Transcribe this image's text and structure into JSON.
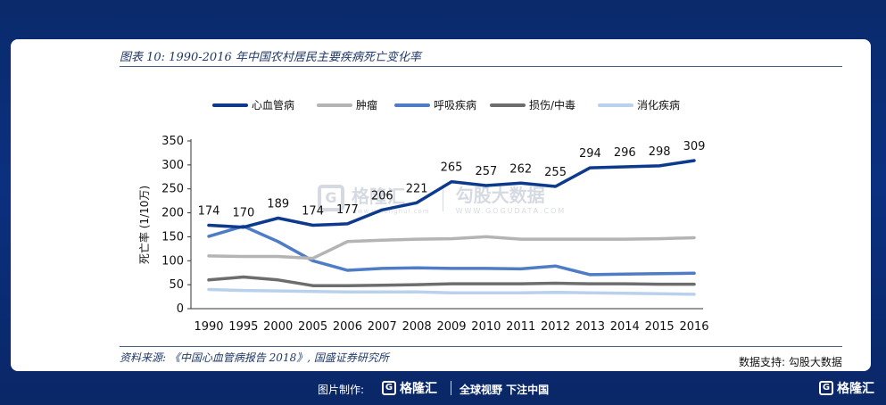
{
  "figure": {
    "title": "图表 10:  1990-2016 年中国农村居民主要疾病死亡变化率",
    "source": "资料来源: 《中国心血管病报告 2018》, 国盛证券研究所",
    "support": "数据支持: 勾股大数据"
  },
  "watermark": {
    "brand": "格隆汇",
    "brand_url": "www.gelonghui.com",
    "partner": "勾股大数据",
    "partner_url": "WWW.GOGUDATA.COM"
  },
  "footer": {
    "made_by": "图片制作:",
    "brand": "格隆汇",
    "slogan": "全球视野 下注中国",
    "corner_brand": "格隆汇"
  },
  "colors": {
    "cardiovascular": "#0d3a8c",
    "tumor": "#b4b4b4",
    "respiratory": "#4f7cc6",
    "injury": "#6d6d6d",
    "digestive": "#b9d1ec"
  },
  "chart_data": {
    "type": "line",
    "categories": [
      "1990",
      "1995",
      "2000",
      "2005",
      "2006",
      "2007",
      "2008",
      "2009",
      "2010",
      "2011",
      "2012",
      "2013",
      "2014",
      "2015",
      "2016"
    ],
    "ylabel": "死亡率 (1/10万)",
    "ylim": [
      0,
      350
    ],
    "yticks": [
      0,
      50,
      100,
      150,
      200,
      250,
      300,
      350
    ],
    "grid": false,
    "legend": "top",
    "series": [
      {
        "name": "心血管病",
        "color": "#0d3a8c",
        "values": [
          174,
          170,
          189,
          174,
          177,
          206,
          221,
          265,
          257,
          262,
          255,
          294,
          296,
          298,
          309
        ],
        "labels": true
      },
      {
        "name": "肿瘤",
        "color": "#b4b4b4",
        "values": [
          110,
          109,
          109,
          105,
          140,
          143,
          145,
          146,
          150,
          145,
          145,
          145,
          145,
          146,
          148
        ],
        "labels": false
      },
      {
        "name": "呼吸疾病",
        "color": "#4f7cc6",
        "values": [
          151,
          172,
          140,
          100,
          80,
          84,
          85,
          84,
          84,
          83,
          89,
          71,
          72,
          73,
          74
        ],
        "labels": false
      },
      {
        "name": "损伤/中毒",
        "color": "#6d6d6d",
        "values": [
          60,
          66,
          60,
          48,
          48,
          49,
          50,
          52,
          52,
          52,
          53,
          52,
          52,
          51,
          51
        ],
        "labels": false
      },
      {
        "name": "消化疾病",
        "color": "#b9d1ec",
        "values": [
          40,
          38,
          37,
          36,
          35,
          35,
          35,
          33,
          33,
          33,
          34,
          33,
          32,
          31,
          30
        ],
        "labels": false
      }
    ]
  }
}
